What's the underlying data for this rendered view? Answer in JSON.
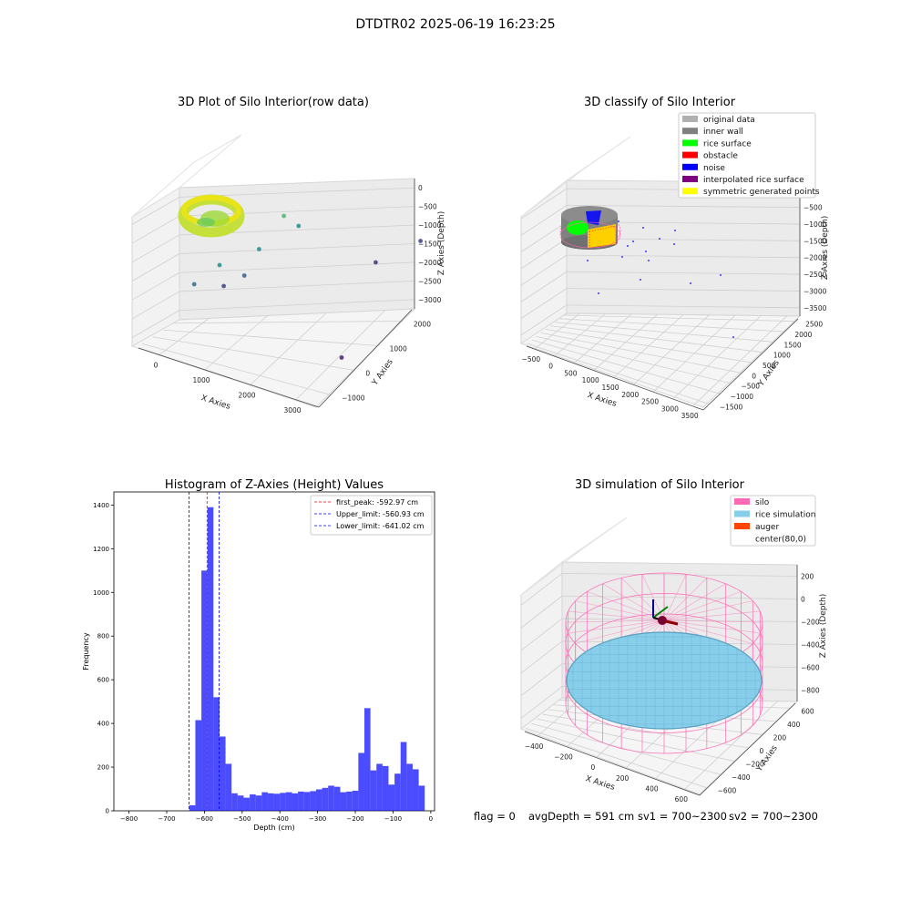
{
  "figure": {
    "suptitle": "DTDTR02 2025-06-19 16:23:25",
    "status": {
      "flag": "flag = 0",
      "avg_depth": "avgDepth = 591 cm",
      "sv1": "sv1 = 700~2300",
      "sv2": "sv2 = 700~2300"
    }
  },
  "chart_data": [
    {
      "type": "scatter",
      "dims": 3,
      "title": "3D Plot of Silo Interior(row data)",
      "xlabel": "X Axies",
      "ylabel": "Y Axies",
      "zlabel": "Z Axies (Depth)",
      "xticks": [
        "0",
        "1000",
        "2000",
        "3000"
      ],
      "yticks": [
        "−1000",
        "0",
        "1000",
        "2000"
      ],
      "zticks": [
        "0",
        "−500",
        "−1000",
        "−1500",
        "−2000",
        "−2500",
        "−3000"
      ],
      "colormap": "viridis",
      "grid": true,
      "points": [
        {
          "x": 1400,
          "y": 1200,
          "z": -1000
        },
        {
          "x": 900,
          "y": 400,
          "z": -1500
        },
        {
          "x": 1200,
          "y": 900,
          "z": -1600
        },
        {
          "x": 600,
          "y": 200,
          "z": -1900
        },
        {
          "x": 1100,
          "y": 700,
          "z": -2100
        },
        {
          "x": 1500,
          "y": 1400,
          "z": -1500
        },
        {
          "x": 800,
          "y": 600,
          "z": -2400
        },
        {
          "x": 2600,
          "y": 1800,
          "z": -2500
        },
        {
          "x": 3000,
          "y": 2300,
          "z": -2400
        },
        {
          "x": 3300,
          "y": 300,
          "z": -2700
        }
      ]
    },
    {
      "type": "scatter",
      "dims": 3,
      "title": "3D classify of Silo Interior",
      "xlabel": "X Axies",
      "ylabel": "Y Axies",
      "zlabel": "Z Axies (Depth)",
      "xticks": [
        "−500",
        "0",
        "500",
        "1000",
        "1500",
        "2000",
        "2500",
        "3000",
        "3500"
      ],
      "yticks": [
        "−1500",
        "−1000",
        "−500",
        "0",
        "500",
        "1000",
        "1500",
        "2000",
        "2500"
      ],
      "zticks": [
        "0",
        "−500",
        "−1000",
        "−1500",
        "−2000",
        "−2500",
        "−3000",
        "−3500"
      ],
      "legend_position": "top-right",
      "grid": true,
      "legend": [
        {
          "label": "original data",
          "color": "#b0b0b0"
        },
        {
          "label": "inner wall",
          "color": "#808080"
        },
        {
          "label": "rice surface",
          "color": "#00ff00"
        },
        {
          "label": "obstacle",
          "color": "#ff0000"
        },
        {
          "label": "noise",
          "color": "#0000ff"
        },
        {
          "label": "interpolated rice surface",
          "color": "#800080"
        },
        {
          "label": "symmetric generated points",
          "color": "#ffff00"
        }
      ]
    },
    {
      "type": "bar",
      "title": "Histogram of Z-Axies (Height) Values",
      "xlabel": "Depth (cm)",
      "ylabel": "Frequency",
      "xlim": [
        -840,
        10
      ],
      "ylim": [
        0,
        1460
      ],
      "xticks": [
        -800,
        -700,
        -600,
        -500,
        -400,
        -300,
        -200,
        -100,
        0
      ],
      "yticks": [
        0,
        200,
        400,
        600,
        800,
        1000,
        1200,
        1400
      ],
      "bar_color": "#0000ff",
      "bin_width": 16,
      "bins": [
        {
          "x": -640,
          "value": 25
        },
        {
          "x": -624,
          "value": 415
        },
        {
          "x": -608,
          "value": 1100
        },
        {
          "x": -592,
          "value": 1390
        },
        {
          "x": -576,
          "value": 520
        },
        {
          "x": -560,
          "value": 340
        },
        {
          "x": -544,
          "value": 215
        },
        {
          "x": -528,
          "value": 80
        },
        {
          "x": -512,
          "value": 70
        },
        {
          "x": -496,
          "value": 60
        },
        {
          "x": -480,
          "value": 75
        },
        {
          "x": -464,
          "value": 70
        },
        {
          "x": -448,
          "value": 85
        },
        {
          "x": -432,
          "value": 80
        },
        {
          "x": -416,
          "value": 78
        },
        {
          "x": -400,
          "value": 82
        },
        {
          "x": -384,
          "value": 85
        },
        {
          "x": -368,
          "value": 80
        },
        {
          "x": -352,
          "value": 88
        },
        {
          "x": -336,
          "value": 86
        },
        {
          "x": -320,
          "value": 90
        },
        {
          "x": -304,
          "value": 98
        },
        {
          "x": -288,
          "value": 105
        },
        {
          "x": -272,
          "value": 115
        },
        {
          "x": -256,
          "value": 110
        },
        {
          "x": -240,
          "value": 85
        },
        {
          "x": -224,
          "value": 88
        },
        {
          "x": -208,
          "value": 92
        },
        {
          "x": -192,
          "value": 265
        },
        {
          "x": -176,
          "value": 470
        },
        {
          "x": -160,
          "value": 185
        },
        {
          "x": -144,
          "value": 215
        },
        {
          "x": -128,
          "value": 205
        },
        {
          "x": -112,
          "value": 120
        },
        {
          "x": -96,
          "value": 170
        },
        {
          "x": -80,
          "value": 315
        },
        {
          "x": -64,
          "value": 215
        },
        {
          "x": -48,
          "value": 190
        },
        {
          "x": -32,
          "value": 115
        }
      ],
      "vlines": [
        {
          "label": "first_peak: -592.97 cm",
          "x": -592.97,
          "color": "#ff0000"
        },
        {
          "label": "Upper_limit: -560.93 cm",
          "x": -560.93,
          "color": "#0000ff"
        },
        {
          "label": "Lower_limit: -641.02 cm",
          "x": -641.02,
          "color": "#0000ff"
        }
      ],
      "legend_position": "top-right",
      "grid": false
    },
    {
      "type": "surface",
      "dims": 3,
      "title": "3D simulation of Silo Interior",
      "xlabel": "X Axies",
      "ylabel": "Y Axies",
      "zlabel": "Z Axies (Depth)",
      "xticks": [
        "−400",
        "−200",
        "0",
        "200",
        "400",
        "600"
      ],
      "yticks": [
        "−600",
        "−400",
        "−200",
        "0",
        "200",
        "400",
        "600"
      ],
      "zticks": [
        "200",
        "0",
        "−200",
        "−400",
        "−600",
        "−800"
      ],
      "legend_position": "top-right",
      "grid": true,
      "legend": [
        {
          "label": "silo",
          "color": "#ff69b4"
        },
        {
          "label": "rice simulation",
          "color": "#87ceeb"
        },
        {
          "label": "auger",
          "color": "#ff4500"
        },
        {
          "label": "center(80,0)",
          "color": "#ffffff"
        }
      ]
    }
  ]
}
